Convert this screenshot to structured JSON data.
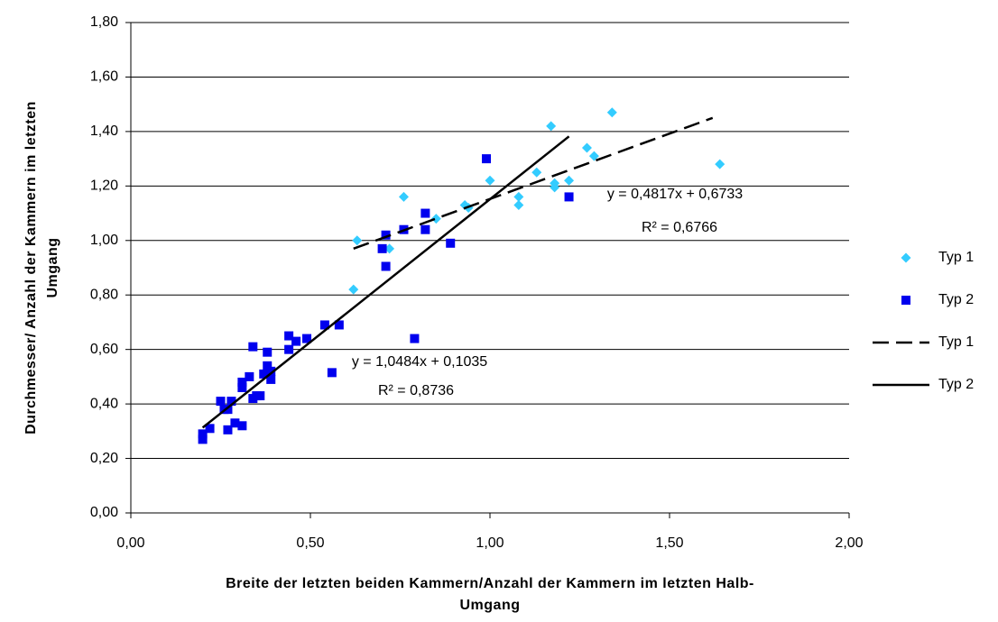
{
  "chart_data": {
    "type": "scatter",
    "xlabel": [
      "Breite der letzten beiden Kammern/Anzahl der Kammern im letzten Halb-",
      "Umgang"
    ],
    "ylabel": [
      "Durchmesser/ Anzahl der Kammern im letzten",
      "Umgang"
    ],
    "xlim": [
      0,
      2
    ],
    "xticks": [
      {
        "value": 0,
        "label": "0,00"
      },
      {
        "value": 0.5,
        "label": "0,50"
      },
      {
        "value": 1,
        "label": "1,00"
      },
      {
        "value": 1.5,
        "label": "1,50"
      },
      {
        "value": 2,
        "label": "2,00"
      }
    ],
    "ylim": [
      0,
      1.8
    ],
    "yticks": [
      {
        "value": 0,
        "label": "0,00"
      },
      {
        "value": 0.2,
        "label": "0,20"
      },
      {
        "value": 0.4,
        "label": "0,40"
      },
      {
        "value": 0.6,
        "label": "0,60"
      },
      {
        "value": 0.8,
        "label": "0,80"
      },
      {
        "value": 1,
        "label": "1,00"
      },
      {
        "value": 1.2,
        "label": "1,20"
      },
      {
        "value": 1.4,
        "label": "1,40"
      },
      {
        "value": 1.6,
        "label": "1,60"
      },
      {
        "value": 1.8,
        "label": "1,80"
      }
    ],
    "grid": true,
    "legend": "right",
    "series": [
      {
        "name": "Typ 1",
        "kind": "scatter",
        "marker": "diamond",
        "color": "#33ccff",
        "x": [
          1.17,
          1.34,
          1.64,
          1.27,
          1.29,
          1.13,
          1.18,
          1.18,
          1.22,
          1.08,
          1.08,
          1.0,
          0.93,
          0.94,
          0.85,
          0.76,
          0.72,
          0.63,
          0.62
        ],
        "values": [
          1.42,
          1.47,
          1.28,
          1.34,
          1.31,
          1.25,
          1.21,
          1.195,
          1.22,
          1.16,
          1.13,
          1.22,
          1.13,
          1.12,
          1.08,
          1.16,
          0.97,
          1.0,
          0.82
        ]
      },
      {
        "name": "Typ 2",
        "kind": "scatter",
        "marker": "square",
        "color": "#0000ee",
        "x": [
          0.99,
          1.22,
          0.82,
          0.82,
          0.76,
          0.71,
          0.7,
          0.71,
          0.89,
          0.79,
          0.58,
          0.54,
          0.56,
          0.49,
          0.46,
          0.44,
          0.44,
          0.39,
          0.39,
          0.38,
          0.38,
          0.37,
          0.36,
          0.35,
          0.34,
          0.34,
          0.33,
          0.31,
          0.31,
          0.31,
          0.29,
          0.28,
          0.27,
          0.27,
          0.25,
          0.26,
          0.22,
          0.2,
          0.2
        ],
        "values": [
          1.3,
          1.16,
          1.1,
          1.04,
          1.04,
          1.02,
          0.97,
          0.905,
          0.99,
          0.64,
          0.69,
          0.69,
          0.515,
          0.64,
          0.63,
          0.65,
          0.6,
          0.49,
          0.52,
          0.54,
          0.59,
          0.51,
          0.43,
          0.43,
          0.61,
          0.42,
          0.5,
          0.46,
          0.48,
          0.32,
          0.33,
          0.41,
          0.38,
          0.305,
          0.41,
          0.38,
          0.31,
          0.29,
          0.27
        ]
      },
      {
        "name": "Typ 1",
        "kind": "line",
        "dash": true,
        "color": "#000000",
        "x": [
          0.62,
          1.62
        ],
        "values": [
          0.97,
          1.45
        ]
      },
      {
        "name": "Typ 2",
        "kind": "line",
        "dash": false,
        "color": "#000000",
        "x": [
          0.2,
          1.22
        ],
        "values": [
          0.313,
          1.382
        ]
      }
    ],
    "annotations": [
      "y = 0,4817x + 0,6733",
      "R² = 0,6766",
      "y = 1,0484x + 0,1035",
      "R² = 0,8736"
    ]
  }
}
